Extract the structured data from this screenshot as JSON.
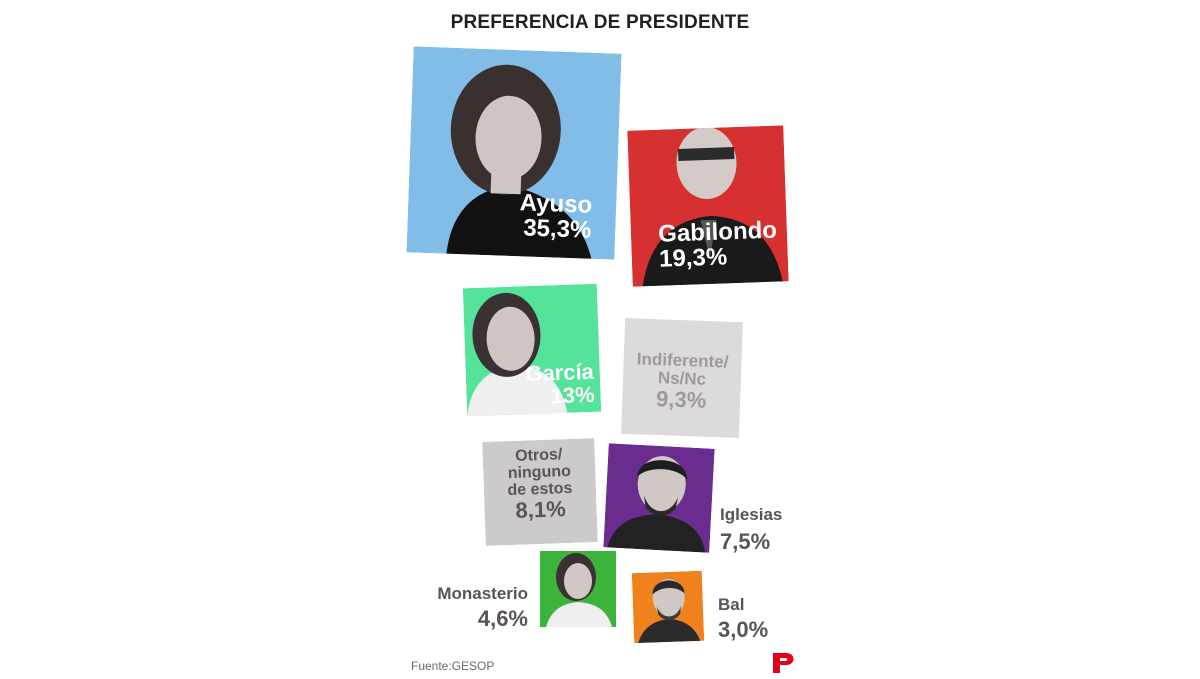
{
  "title": "PREFERENCIA DE PRESIDENTE",
  "source": "Fuente:GESOP",
  "chart_data": {
    "type": "bar",
    "title": "PREFERENCIA DE PRESIDENTE",
    "categories": [
      "Ayuso",
      "Gabilondo",
      "García",
      "Indiferente/ Ns/Nc",
      "Otros/ ninguno de estos",
      "Iglesias",
      "Monasterio",
      "Bal"
    ],
    "values": [
      35.3,
      19.3,
      13,
      9.3,
      8.1,
      7.5,
      4.6,
      3.0
    ],
    "items": [
      {
        "name": "Ayuso",
        "value": 35.3,
        "value_label": "35,3%",
        "color": "#82bde8"
      },
      {
        "name": "Gabilondo",
        "value": 19.3,
        "value_label": "19,3%",
        "color": "#d63030"
      },
      {
        "name": "García",
        "value": 13,
        "value_label": "13%",
        "color": "#55e39a"
      },
      {
        "name_lines": [
          "Indiferente/",
          "Ns/Nc"
        ],
        "value": 9.3,
        "value_label": "9,3%",
        "color": "#dcdadb"
      },
      {
        "name_lines": [
          "Otros/",
          "ninguno",
          "de estos"
        ],
        "value": 8.1,
        "value_label": "8,1%",
        "color": "#cdcacb"
      },
      {
        "name": "Iglesias",
        "value": 7.5,
        "value_label": "7,5%",
        "color": "#6a2d8f"
      },
      {
        "name": "Monasterio",
        "value": 4.6,
        "value_label": "4,6%",
        "color": "#3cb43c"
      },
      {
        "name": "Bal",
        "value": 3.0,
        "value_label": "3,0%",
        "color": "#f0821e"
      }
    ]
  }
}
